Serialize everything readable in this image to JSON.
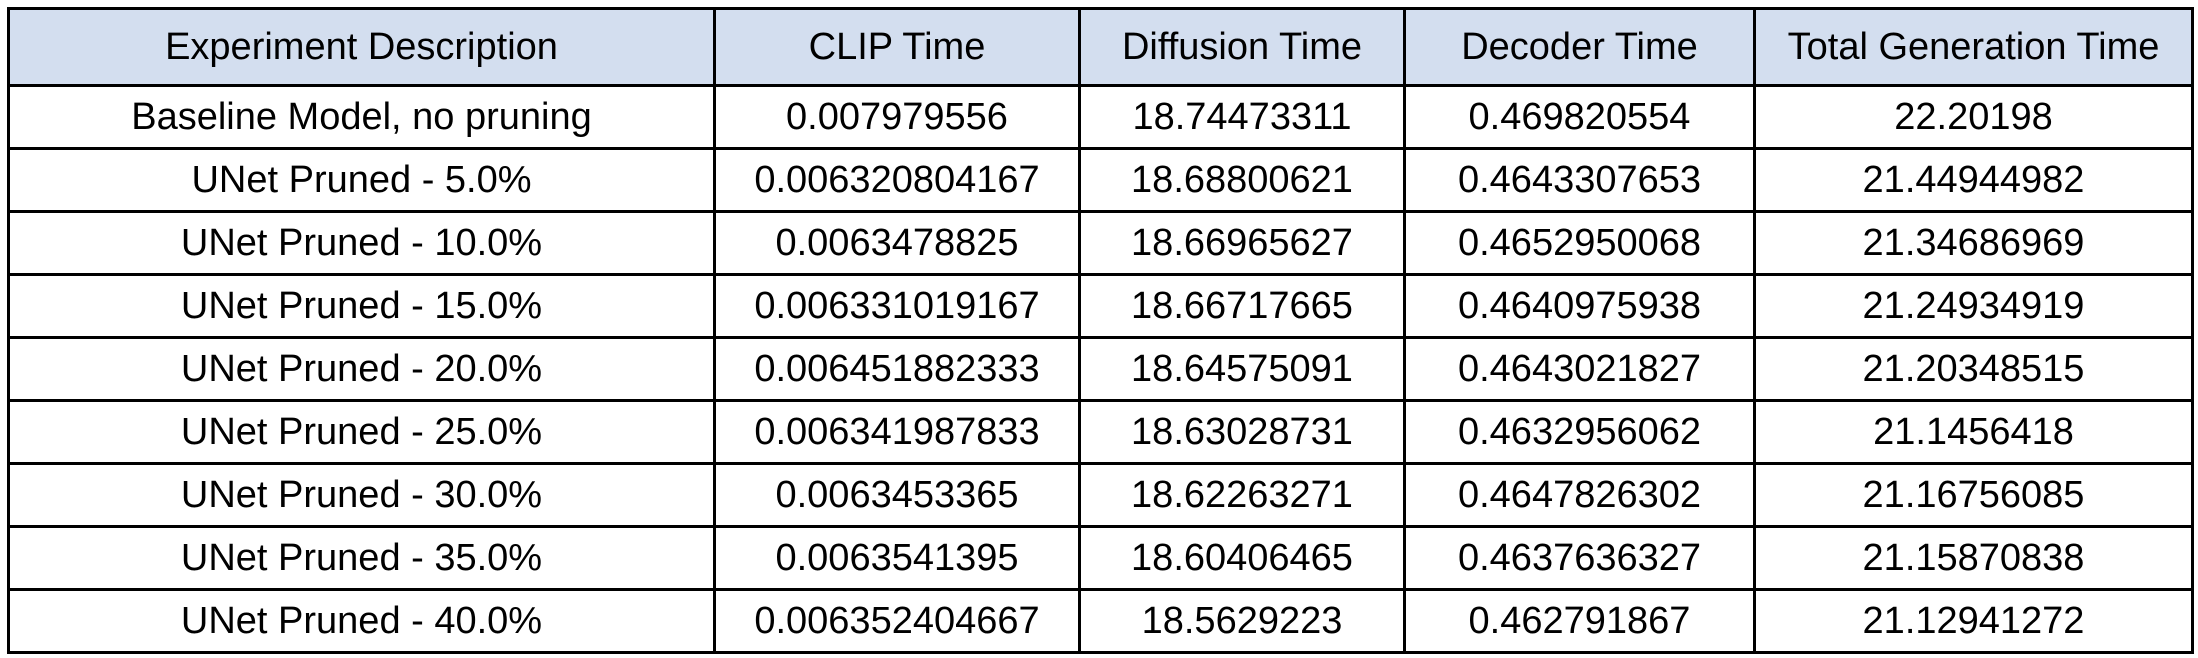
{
  "table": {
    "columns": [
      "Experiment Description",
      "CLIP Time",
      "Diffusion Time",
      "Decoder Time",
      "Total Generation Time"
    ],
    "rows": [
      [
        "Baseline Model, no pruning",
        "0.007979556",
        "18.74473311",
        "0.469820554",
        "22.20198"
      ],
      [
        "UNet Pruned - 5.0%",
        "0.006320804167",
        "18.68800621",
        "0.4643307653",
        "21.44944982"
      ],
      [
        "UNet Pruned - 10.0%",
        "0.0063478825",
        "18.66965627",
        "0.4652950068",
        "21.34686969"
      ],
      [
        "UNet Pruned - 15.0%",
        "0.006331019167",
        "18.66717665",
        "0.4640975938",
        "21.24934919"
      ],
      [
        "UNet Pruned - 20.0%",
        "0.006451882333",
        "18.64575091",
        "0.4643021827",
        "21.20348515"
      ],
      [
        "UNet Pruned - 25.0%",
        "0.006341987833",
        "18.63028731",
        "0.4632956062",
        "21.1456418"
      ],
      [
        "UNet Pruned - 30.0%",
        "0.0063453365",
        "18.62263271",
        "0.4647826302",
        "21.16756085"
      ],
      [
        "UNet Pruned - 35.0%",
        "0.0063541395",
        "18.60406465",
        "0.4637636327",
        "21.15870838"
      ],
      [
        "UNet Pruned - 40.0%",
        "0.006352404667",
        "18.5629223",
        "0.462791867",
        "21.12941272"
      ]
    ]
  },
  "colors": {
    "header_background": "#d3deef",
    "border": "#000000",
    "text": "#000000"
  }
}
